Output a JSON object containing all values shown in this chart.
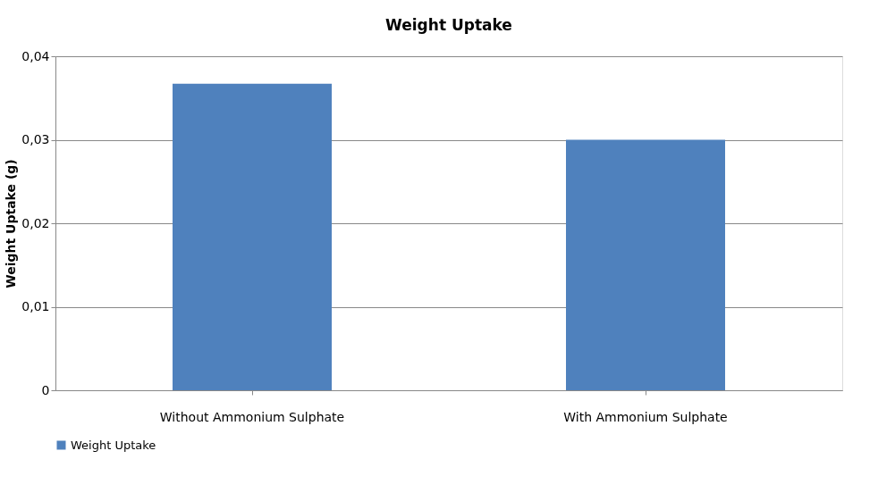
{
  "chart_data": {
    "type": "bar",
    "title": "Weight Uptake",
    "ylabel": "Weight Uptake (g)",
    "categories": [
      "Without Ammonium Sulphate",
      "With Ammonium Sulphate"
    ],
    "series": [
      {
        "name": "Weight Uptake",
        "color": "#4f81bd",
        "values": [
          0.0367,
          0.03
        ]
      }
    ],
    "ylim": [
      0,
      0.04
    ],
    "yticks": [
      0,
      {
        "value": 0.01,
        "label": "0,01"
      },
      {
        "value": 0.02,
        "label": "0,02"
      },
      {
        "value": 0.03,
        "label": "0,03"
      },
      {
        "value": 0.04,
        "label": "0,04"
      }
    ],
    "grid": "y",
    "legend": "bottom"
  }
}
